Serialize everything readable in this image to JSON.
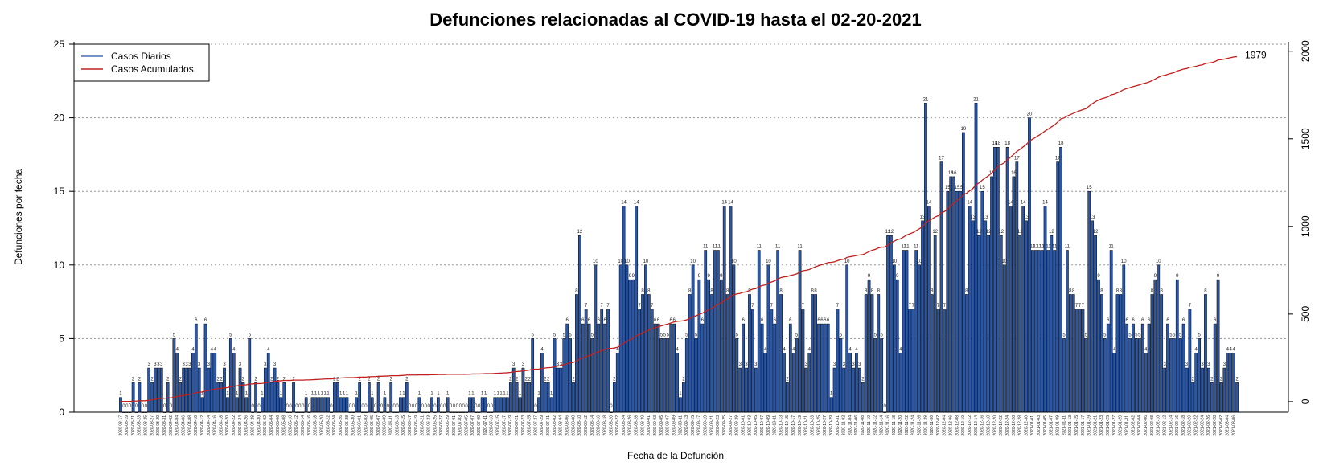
{
  "chart_data": {
    "type": "bar",
    "title": "Defunciones relacionadas al COVID-19 hasta el 02-20-2021",
    "xlabel": "Fecha de la Defunción",
    "ylabel": "Defunciones por fecha",
    "ylim": [
      0,
      25
    ],
    "yticks": [
      0,
      5,
      10,
      15,
      20,
      25
    ],
    "y2lim": [
      -60,
      2040
    ],
    "y2ticks": [
      0,
      500,
      1000,
      1500,
      2000
    ],
    "grid": "horizontal dotted",
    "legend_position": "top-left",
    "start_date": "2020-03-17",
    "label_every": 2,
    "colors": {
      "bars": "#2a57a7",
      "bar_edge": "#000000",
      "cumulative": "#c02020",
      "grid": "#999999"
    },
    "series": [
      {
        "name": "Casos Diarios",
        "color": "#4a6fb5",
        "values": [
          1,
          0,
          0,
          0,
          2,
          0,
          2,
          0,
          0,
          3,
          2,
          3,
          3,
          3,
          0,
          2,
          0,
          5,
          4,
          2,
          3,
          3,
          3,
          4,
          6,
          3,
          1,
          6,
          3,
          4,
          4,
          2,
          2,
          3,
          1,
          5,
          4,
          1,
          3,
          2,
          1,
          5,
          0,
          2,
          0,
          1,
          3,
          4,
          2,
          3,
          2,
          1,
          2,
          0,
          0,
          2,
          0,
          0,
          0,
          1,
          0,
          1,
          1,
          1,
          1,
          1,
          1,
          0,
          2,
          2,
          1,
          1,
          1,
          0,
          0,
          1,
          2,
          0,
          0,
          2,
          1,
          0,
          2,
          0,
          1,
          0,
          2,
          0,
          0,
          1,
          1,
          2,
          0,
          0,
          0,
          1,
          0,
          0,
          0,
          1,
          0,
          1,
          0,
          0,
          1,
          0,
          0,
          0,
          0,
          0,
          0,
          1,
          1,
          0,
          0,
          1,
          1,
          0,
          0,
          1,
          1,
          1,
          1,
          1,
          2,
          3,
          2,
          1,
          3,
          2,
          2,
          5,
          0,
          1,
          4,
          2,
          2,
          1,
          5,
          3,
          3,
          5,
          6,
          5,
          2,
          8,
          12,
          6,
          7,
          6,
          5,
          10,
          6,
          7,
          6,
          7,
          0,
          2,
          4,
          10,
          14,
          10,
          9,
          9,
          14,
          7,
          8,
          10,
          8,
          7,
          6,
          6,
          5,
          5,
          5,
          6,
          6,
          4,
          1,
          2,
          5,
          8,
          10,
          5,
          9,
          6,
          11,
          9,
          8,
          11,
          11,
          9,
          14,
          8,
          14,
          10,
          5,
          3,
          6,
          3,
          8,
          7,
          3,
          11,
          6,
          4,
          10,
          7,
          6,
          11,
          8,
          4,
          2,
          6,
          4,
          5,
          11,
          7,
          3,
          4,
          8,
          8,
          6,
          6,
          6,
          6,
          1,
          3,
          7,
          5,
          3,
          10,
          4,
          3,
          4,
          3,
          2,
          8,
          9,
          8,
          5,
          8,
          5,
          0,
          12,
          12,
          10,
          9,
          4,
          11,
          11,
          7,
          7,
          11,
          10,
          13,
          21,
          14,
          8,
          12,
          7,
          17,
          7,
          15,
          16,
          16,
          15,
          15,
          19,
          8,
          14,
          13,
          21,
          12,
          15,
          13,
          12,
          16,
          18,
          18,
          12,
          10,
          18,
          14,
          16,
          17,
          12,
          14,
          13,
          20,
          11,
          11,
          11,
          11,
          14,
          11,
          12,
          11,
          17,
          18,
          5,
          11,
          8,
          8,
          7,
          7,
          7,
          5,
          15,
          13,
          12,
          9,
          8,
          5,
          6,
          11,
          4,
          8,
          8,
          10,
          6,
          5,
          6,
          5,
          5,
          6,
          4,
          6,
          8,
          9,
          10,
          8,
          3,
          6,
          5,
          5,
          9,
          5,
          6,
          3,
          7,
          2,
          4,
          5,
          3,
          8,
          3,
          2,
          6,
          9,
          2,
          3,
          4,
          4,
          4,
          2
        ]
      },
      {
        "name": "Casos Acumulados",
        "color": "#c02020",
        "final_value": 1979,
        "final_label": "1979"
      }
    ]
  }
}
